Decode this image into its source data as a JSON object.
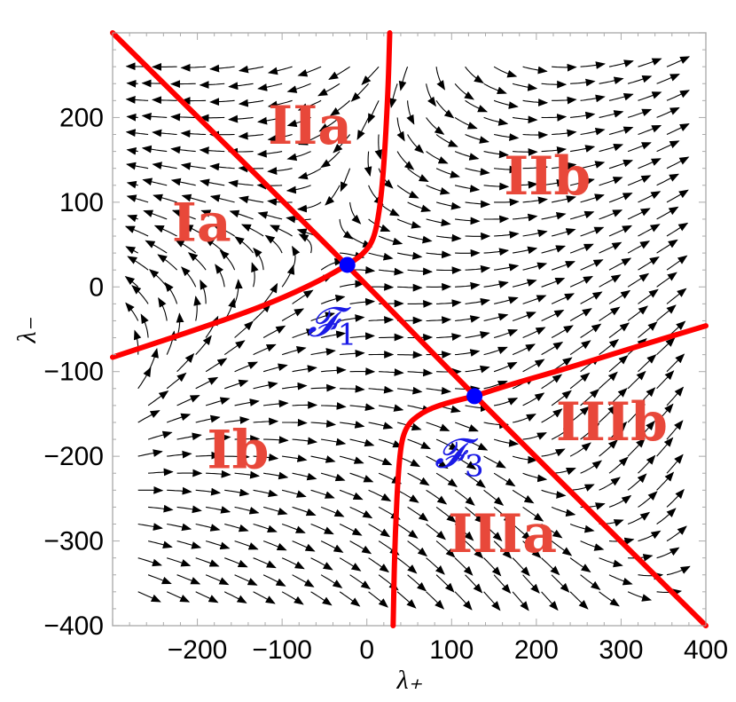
{
  "chart_data": {
    "type": "streamplot",
    "xlabel": "λ₊",
    "ylabel": "λ₋",
    "xlim": [
      -300,
      400
    ],
    "ylim": [
      -400,
      300
    ],
    "x_ticks": [
      -200,
      -100,
      0,
      100,
      200,
      300,
      400
    ],
    "y_ticks": [
      -400,
      -300,
      -200,
      -100,
      0,
      100,
      200
    ],
    "x_tick_labels": [
      "−200",
      "−100",
      "0",
      "100",
      "200",
      "300",
      "400"
    ],
    "y_tick_labels": [
      "−400",
      "−300",
      "−200",
      "−100",
      "0",
      "100",
      "200"
    ],
    "fixed_points": [
      {
        "name": "F1",
        "label": "𝓕",
        "subscript": "1",
        "x": -23,
        "y": 26
      },
      {
        "name": "F3",
        "label": "𝓕",
        "subscript": "3",
        "x": 127,
        "y": -129
      }
    ],
    "separatrices": [
      {
        "name": "diagonal",
        "points": [
          [
            -300,
            300
          ],
          [
            -23,
            26
          ],
          [
            127,
            -129
          ],
          [
            400,
            -400
          ]
        ]
      },
      {
        "name": "upper-branch",
        "points": [
          [
            27,
            300
          ],
          [
            25,
            230
          ],
          [
            20,
            140
          ],
          [
            15,
            90
          ],
          [
            8,
            55
          ],
          [
            -5,
            38
          ],
          [
            -23,
            26
          ]
        ]
      },
      {
        "name": "left-branch",
        "points": [
          [
            -23,
            26
          ],
          [
            -60,
            5
          ],
          [
            -120,
            -22
          ],
          [
            -200,
            -50
          ],
          [
            -300,
            -83
          ]
        ]
      },
      {
        "name": "lower-branch",
        "points": [
          [
            127,
            -129
          ],
          [
            90,
            -138
          ],
          [
            65,
            -148
          ],
          [
            45,
            -165
          ],
          [
            38,
            -200
          ],
          [
            33,
            -300
          ],
          [
            31,
            -400
          ]
        ]
      },
      {
        "name": "right-branch",
        "points": [
          [
            127,
            -129
          ],
          [
            170,
            -115
          ],
          [
            240,
            -95
          ],
          [
            320,
            -70
          ],
          [
            400,
            -46
          ]
        ]
      }
    ],
    "regions": [
      {
        "label": "Ia",
        "x": -195,
        "y": 75
      },
      {
        "label": "IIa",
        "x": -67,
        "y": 190
      },
      {
        "label": "IIb",
        "x": 213,
        "y": 130
      },
      {
        "label": "Ib",
        "x": -152,
        "y": -193
      },
      {
        "label": "IIIa",
        "x": 160,
        "y": -292
      },
      {
        "label": "IIIb",
        "x": 289,
        "y": -160
      }
    ],
    "colors": {
      "separatrix": "#ff0000",
      "fixed_point": "#0000ff",
      "region_label": "#e8483a",
      "fp_label": "#1a1ae6",
      "stream": "#000000"
    },
    "grid": false,
    "frame_ticks": "all-sides"
  }
}
